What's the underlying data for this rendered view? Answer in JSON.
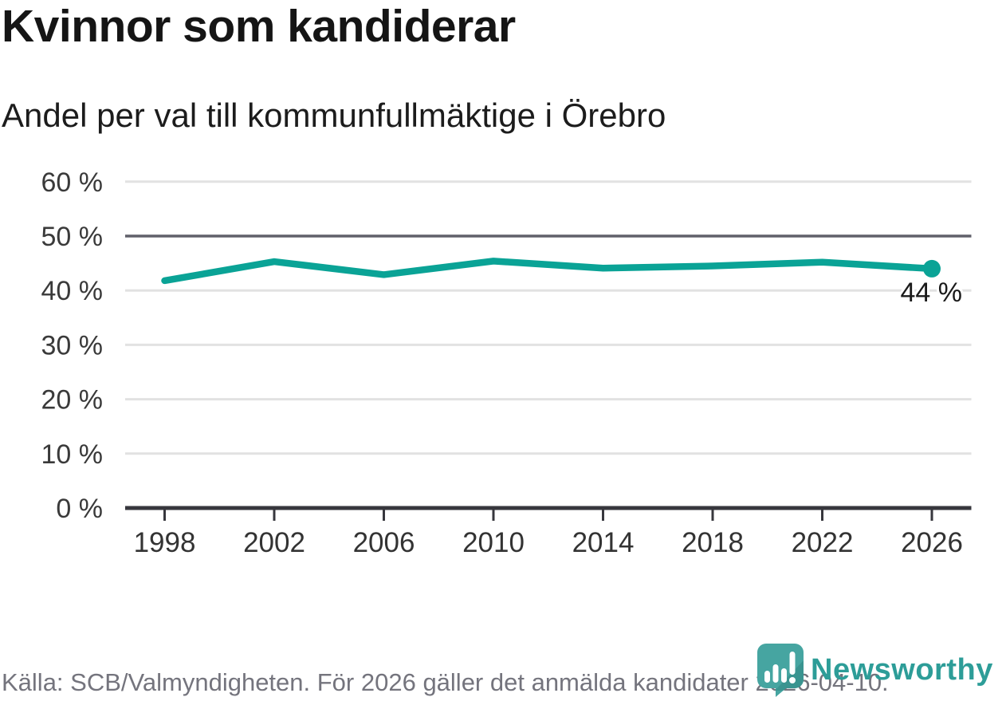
{
  "header": {
    "title": "Kvinnor som kandiderar",
    "subtitle": "Andel per val till kommunfullmäktige i Örebro"
  },
  "chart_data": {
    "type": "line",
    "title": "Kvinnor som kandiderar",
    "subtitle": "Andel per val till kommunfullmäktige i Örebro",
    "x": [
      1998,
      2002,
      2006,
      2010,
      2014,
      2018,
      2022,
      2026
    ],
    "values": [
      41.8,
      45.3,
      42.9,
      45.4,
      44.1,
      44.5,
      45.2,
      44.0
    ],
    "x_tick_labels": [
      "1998",
      "2002",
      "2006",
      "2010",
      "2014",
      "2018",
      "2022",
      "2026"
    ],
    "y_ticks": [
      0,
      10,
      20,
      30,
      40,
      50,
      60
    ],
    "y_tick_labels": [
      "0 %",
      "10 %",
      "20 %",
      "30 %",
      "40 %",
      "50 %",
      "60 %"
    ],
    "ylim": [
      0,
      60
    ],
    "grid": true,
    "emphasized_gridline": 50,
    "legend": null,
    "end_label": "44 %",
    "line_color": "#0aa396",
    "marker_on_last_point": true
  },
  "footer": {
    "source": "Källa: SCB/Valmyndigheten. För 2026 gäller det anmälda kandidater 2026-04-10."
  },
  "logo": {
    "text": "Newsworthy",
    "icon": "newsworthy-speech-bubble-bar-chart-icon"
  },
  "colors": {
    "accent_teal": "#0aa396",
    "logo_teal": "#2d9d98",
    "logo_icon_teal": "#46a5a1",
    "logo_icon_shade": "#378f8b",
    "grid_light": "#e2e2e2",
    "grid_emphasis": "#60606a",
    "axis_dark": "#37373d",
    "text_dark": "#1a1a1a",
    "text_gray": "#74747d"
  }
}
